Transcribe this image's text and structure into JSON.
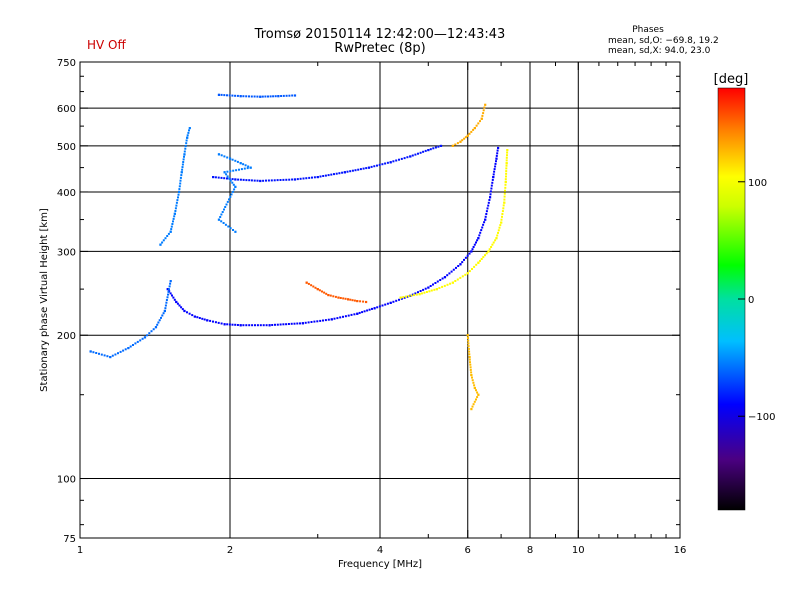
{
  "header": {
    "title_line1": "Tromsø 20150114 12:42:00—12:43:43",
    "title_line2": "RwPretec (8p)",
    "status": "HV Off",
    "status_color": "#cc0000",
    "stats_title": "Phases",
    "stats_o": "mean, sd,O: −69.8, 19.2",
    "stats_x": "mean, sd,X:  94.0, 23.0"
  },
  "colorbar": {
    "unit_label": "[deg]",
    "ticks": [
      {
        "value": 100,
        "label": "100"
      },
      {
        "value": 0,
        "label": "0"
      },
      {
        "value": -100,
        "label": "−100"
      }
    ],
    "range": [
      -180,
      180
    ]
  },
  "chart_data": {
    "type": "scatter",
    "xlabel": "Frequency [MHz]",
    "ylabel": "Stationary phase Virtual Height [km]",
    "xscale": "log",
    "yscale": "log",
    "xlim": [
      1,
      16
    ],
    "ylim": [
      75,
      750
    ],
    "x_ticks": [
      {
        "value": 1,
        "label": "1"
      },
      {
        "value": 2,
        "label": "2"
      },
      {
        "value": 4,
        "label": "4"
      },
      {
        "value": 6,
        "label": "6"
      },
      {
        "value": 8,
        "label": "8"
      },
      {
        "value": 10,
        "label": "10"
      },
      {
        "value": 16,
        "label": "16"
      }
    ],
    "x_grid": [
      2,
      4,
      6,
      8,
      10
    ],
    "x_minor": [
      3,
      5,
      7,
      9,
      11,
      12,
      13,
      14,
      15
    ],
    "y_ticks": [
      {
        "value": 75,
        "label": "75"
      },
      {
        "value": 100,
        "label": "100"
      },
      {
        "value": 200,
        "label": "200"
      },
      {
        "value": 300,
        "label": "300"
      },
      {
        "value": 400,
        "label": "400"
      },
      {
        "value": 500,
        "label": "500"
      },
      {
        "value": 600,
        "label": "600"
      },
      {
        "value": 750,
        "label": "750"
      }
    ],
    "y_grid": [
      100,
      200,
      300,
      400,
      500,
      600
    ],
    "y_minor": [
      80,
      90,
      150,
      250,
      350,
      450,
      550,
      650,
      700
    ],
    "traces": [
      {
        "name": "",
        "phase": -90,
        "points": [
          [
            1.5,
            250
          ],
          [
            1.56,
            235
          ],
          [
            1.62,
            225
          ],
          [
            1.7,
            219
          ],
          [
            1.8,
            215
          ],
          [
            1.95,
            211
          ],
          [
            2.1,
            210
          ],
          [
            2.4,
            210
          ],
          [
            2.8,
            212
          ],
          [
            3.2,
            216
          ],
          [
            3.6,
            222
          ],
          [
            3.9,
            228
          ],
          [
            4.2,
            234
          ],
          [
            4.6,
            242
          ],
          [
            5.0,
            252
          ],
          [
            5.4,
            265
          ],
          [
            5.8,
            282
          ],
          [
            6.1,
            300
          ],
          [
            6.3,
            320
          ],
          [
            6.5,
            350
          ],
          [
            6.65,
            390
          ],
          [
            6.75,
            430
          ],
          [
            6.85,
            470
          ],
          [
            6.9,
            495
          ]
        ]
      },
      {
        "name": "",
        "phase": 105,
        "points": [
          [
            4.4,
            240
          ],
          [
            4.8,
            244
          ],
          [
            5.2,
            250
          ],
          [
            5.6,
            258
          ],
          [
            6.0,
            270
          ],
          [
            6.3,
            284
          ],
          [
            6.6,
            300
          ],
          [
            6.85,
            320
          ],
          [
            7.0,
            345
          ],
          [
            7.1,
            380
          ],
          [
            7.15,
            420
          ],
          [
            7.18,
            460
          ],
          [
            7.2,
            490
          ]
        ]
      },
      {
        "name": "",
        "phase": -85,
        "points": [
          [
            1.85,
            430
          ],
          [
            2.05,
            425
          ],
          [
            2.3,
            422
          ],
          [
            2.7,
            425
          ],
          [
            3.0,
            430
          ],
          [
            3.4,
            440
          ],
          [
            3.8,
            450
          ],
          [
            4.2,
            462
          ],
          [
            4.6,
            475
          ],
          [
            5.0,
            490
          ],
          [
            5.3,
            500
          ]
        ]
      },
      {
        "name": "",
        "phase": 155,
        "points": [
          [
            2.85,
            258
          ],
          [
            3.0,
            250
          ],
          [
            3.15,
            243
          ],
          [
            3.3,
            240
          ],
          [
            3.45,
            238
          ],
          [
            3.6,
            236
          ],
          [
            3.75,
            235
          ]
        ]
      },
      {
        "name": "",
        "phase": -55,
        "points": [
          [
            1.45,
            310
          ],
          [
            1.52,
            330
          ],
          [
            1.55,
            360
          ],
          [
            1.58,
            400
          ],
          [
            1.6,
            440
          ],
          [
            1.62,
            480
          ],
          [
            1.64,
            520
          ],
          [
            1.66,
            545
          ]
        ]
      },
      {
        "name": "",
        "phase": -60,
        "points": [
          [
            1.05,
            185
          ],
          [
            1.15,
            180
          ],
          [
            1.25,
            188
          ],
          [
            1.35,
            198
          ],
          [
            1.42,
            208
          ],
          [
            1.48,
            225
          ],
          [
            1.52,
            260
          ]
        ]
      },
      {
        "name": "",
        "phase": -65,
        "points": [
          [
            1.9,
            640
          ],
          [
            2.1,
            636
          ],
          [
            2.3,
            634
          ],
          [
            2.5,
            636
          ],
          [
            2.7,
            638
          ]
        ]
      },
      {
        "name": "",
        "phase": -55,
        "points": [
          [
            1.9,
            480
          ],
          [
            2.0,
            470
          ],
          [
            2.1,
            460
          ],
          [
            2.2,
            450
          ],
          [
            1.95,
            440
          ],
          [
            2.05,
            410
          ],
          [
            1.9,
            350
          ],
          [
            2.05,
            330
          ]
        ]
      },
      {
        "name": "",
        "phase": 125,
        "points": [
          [
            6.0,
            200
          ],
          [
            6.05,
            180
          ],
          [
            6.1,
            165
          ],
          [
            6.2,
            155
          ],
          [
            6.3,
            150
          ],
          [
            6.1,
            140
          ]
        ]
      },
      {
        "name": "",
        "phase": 130,
        "points": [
          [
            5.6,
            500
          ],
          [
            5.8,
            510
          ],
          [
            6.0,
            525
          ],
          [
            6.2,
            545
          ],
          [
            6.4,
            570
          ],
          [
            6.5,
            610
          ]
        ]
      }
    ]
  }
}
